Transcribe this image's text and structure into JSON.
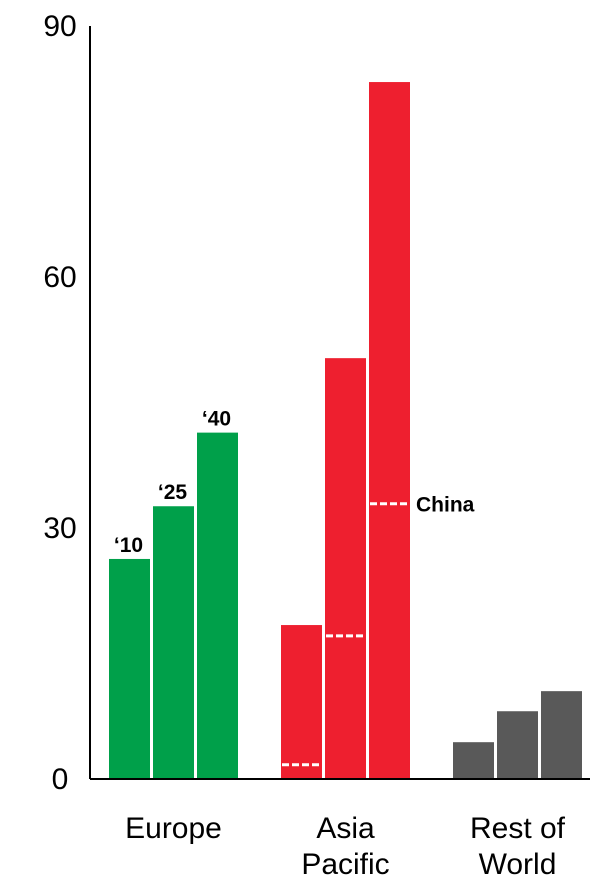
{
  "chart_data": {
    "type": "bar",
    "title": "",
    "xlabel": "",
    "ylabel": "",
    "ylim": [
      0,
      90
    ],
    "yticks": [
      0,
      30,
      60,
      90
    ],
    "grid": false,
    "categories": [
      {
        "label_lines": [
          "Europe"
        ],
        "color": "#00A04A",
        "values": [
          26.3,
          32.6,
          41.4
        ],
        "bar_labels": [
          "‘10",
          "‘25",
          "‘40"
        ]
      },
      {
        "label_lines": [
          "Asia",
          "Pacific"
        ],
        "color": "#EE1F2F",
        "values": [
          18.4,
          50.3,
          83.3
        ],
        "china_values": [
          1.7,
          17.1,
          32.9
        ]
      },
      {
        "label_lines": [
          "Rest of",
          "World"
        ],
        "color": "#595959",
        "values": [
          4.4,
          8.1,
          10.5
        ]
      }
    ],
    "annotation": {
      "text": "China",
      "series_index": 1,
      "bar_index": 2
    }
  }
}
